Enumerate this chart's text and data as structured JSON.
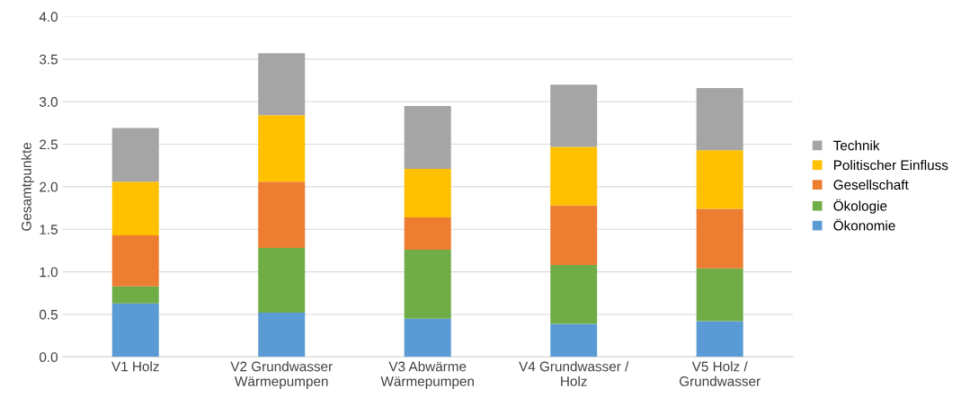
{
  "chart_data": {
    "type": "bar",
    "stacked": true,
    "ylabel": "Gesamtpunkte",
    "categories": [
      "V1 Holz",
      "V2 Grundwasser\nWärmepumpen",
      "V3 Abwärme\nWärmepumpen",
      "V4 Grundwasser /\nHolz",
      "V5 Holz /\nGrundwasser"
    ],
    "series": [
      {
        "name": "Ökonomie",
        "color": "#5b9bd5",
        "values": [
          0.63,
          0.52,
          0.45,
          0.39,
          0.42
        ]
      },
      {
        "name": "Ökologie",
        "color": "#70ad47",
        "values": [
          0.2,
          0.76,
          0.81,
          0.69,
          0.62
        ]
      },
      {
        "name": "Gesellschaft",
        "color": "#ed7d31",
        "values": [
          0.6,
          0.78,
          0.38,
          0.7,
          0.7
        ]
      },
      {
        "name": "Politischer Einfluss",
        "color": "#ffc000",
        "values": [
          0.63,
          0.78,
          0.57,
          0.69,
          0.69
        ]
      },
      {
        "name": "Technik",
        "color": "#a5a5a5",
        "values": [
          0.63,
          0.73,
          0.74,
          0.73,
          0.73
        ]
      }
    ],
    "ylim": [
      0,
      4
    ],
    "yticks": [
      {
        "value": 0,
        "label": "0.0"
      },
      {
        "value": 0.5,
        "label": "0.5"
      },
      {
        "value": 1,
        "label": "1.0"
      },
      {
        "value": 1.5,
        "label": "1.5"
      },
      {
        "value": 2,
        "label": "2.0"
      },
      {
        "value": 2.5,
        "label": "2.5"
      },
      {
        "value": 3,
        "label": "3.0"
      },
      {
        "value": 3.5,
        "label": "3.5"
      },
      {
        "value": 4,
        "label": "4.0"
      }
    ],
    "grid": "y",
    "legend": "right"
  }
}
